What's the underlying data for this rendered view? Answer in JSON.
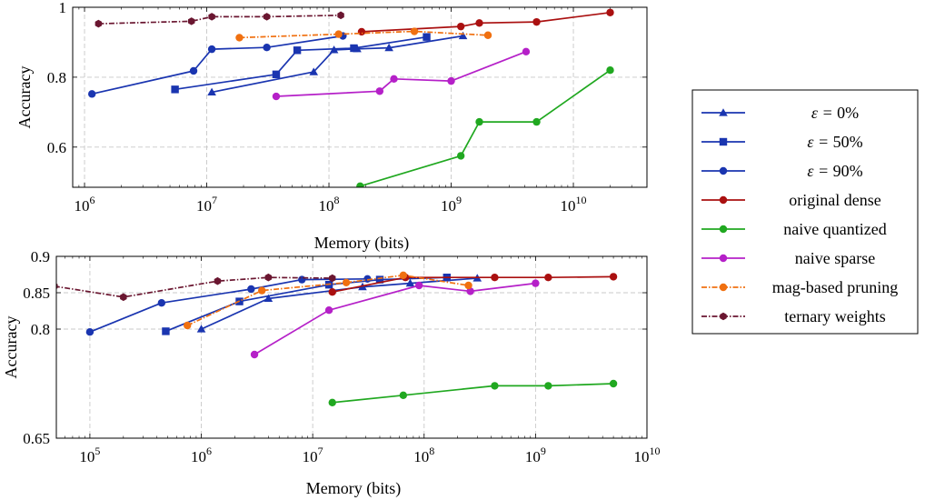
{
  "chart_data": [
    {
      "type": "line",
      "xscale": "log",
      "xlim": [
        800000,
        40000000000
      ],
      "ylim": [
        0.485,
        1.0
      ],
      "xlabel": "Memory (bits)",
      "ylabel": "Accuracy",
      "xticks": [
        {
          "value": 1000000,
          "base": "10",
          "exp": "6"
        },
        {
          "value": 10000000,
          "base": "10",
          "exp": "7"
        },
        {
          "value": 100000000,
          "base": "10",
          "exp": "8"
        },
        {
          "value": 1000000000,
          "base": "10",
          "exp": "9"
        },
        {
          "value": 10000000000,
          "base": "10",
          "exp": "10"
        }
      ],
      "yticks": [
        {
          "value": 0.6,
          "label": "0.6"
        },
        {
          "value": 0.8,
          "label": "0.8"
        },
        {
          "value": 1.0,
          "label": "1"
        }
      ],
      "grid": true,
      "series": [
        {
          "key": "eps0",
          "color": "#1a35b0",
          "marker": "triangle",
          "dash": "solid",
          "points": [
            [
              11000000,
              0.757
            ],
            [
              75000000,
              0.815
            ],
            [
              110000000,
              0.878
            ],
            [
              170000000,
              0.881
            ],
            [
              310000000,
              0.884
            ],
            [
              1250000000,
              0.918
            ]
          ]
        },
        {
          "key": "eps50",
          "color": "#1a35b0",
          "marker": "square",
          "dash": "solid",
          "points": [
            [
              5500000,
              0.765
            ],
            [
              37000000,
              0.808
            ],
            [
              55000000,
              0.877
            ],
            [
              160000000,
              0.883
            ],
            [
              630000000,
              0.915
            ]
          ]
        },
        {
          "key": "eps90",
          "color": "#1a35b0",
          "marker": "circle",
          "dash": "solid",
          "points": [
            [
              1150000,
              0.752
            ],
            [
              7800000,
              0.818
            ],
            [
              11000000,
              0.88
            ],
            [
              31000000,
              0.885
            ],
            [
              130000000,
              0.918
            ]
          ]
        },
        {
          "key": "dense",
          "color": "#aa1010",
          "marker": "circle",
          "dash": "solid",
          "points": [
            [
              185000000,
              0.93
            ],
            [
              1200000000,
              0.945
            ],
            [
              1700000000,
              0.955
            ],
            [
              5000000000,
              0.958
            ],
            [
              20000000000,
              0.985
            ]
          ]
        },
        {
          "key": "naive_q",
          "color": "#20a820",
          "marker": "circle",
          "dash": "solid",
          "points": [
            [
              180000000,
              0.488
            ],
            [
              1200000000,
              0.575
            ],
            [
              1700000000,
              0.672
            ],
            [
              5000000000,
              0.672
            ],
            [
              20000000000,
              0.82
            ]
          ]
        },
        {
          "key": "naive_s",
          "color": "#b520c8",
          "marker": "circle",
          "dash": "solid",
          "points": [
            [
              37000000,
              0.745
            ],
            [
              260000000,
              0.76
            ],
            [
              340000000,
              0.795
            ],
            [
              1000000000,
              0.789
            ],
            [
              4100000000,
              0.873
            ]
          ]
        },
        {
          "key": "mag",
          "color": "#f07010",
          "marker": "circle",
          "dash": "dashdot",
          "points": [
            [
              18500000,
              0.913
            ],
            [
              120000000,
              0.923
            ],
            [
              500000000,
              0.931
            ],
            [
              2000000000,
              0.92
            ]
          ]
        },
        {
          "key": "ternary",
          "color": "#6a1630",
          "marker": "hexagon",
          "dash": "dashdot",
          "points": [
            [
              1300000,
              0.953
            ],
            [
              7500000,
              0.96
            ],
            [
              11000000,
              0.973
            ],
            [
              31000000,
              0.973
            ],
            [
              125000000,
              0.977
            ]
          ]
        }
      ]
    },
    {
      "type": "line",
      "xscale": "log",
      "xlim": [
        50000,
        10000000000
      ],
      "ylim": [
        0.65,
        0.9
      ],
      "xlabel": "Memory (bits)",
      "ylabel": "Accuracy",
      "xticks": [
        {
          "value": 100000,
          "base": "10",
          "exp": "5"
        },
        {
          "value": 1000000,
          "base": "10",
          "exp": "6"
        },
        {
          "value": 10000000,
          "base": "10",
          "exp": "7"
        },
        {
          "value": 100000000,
          "base": "10",
          "exp": "8"
        },
        {
          "value": 1000000000,
          "base": "10",
          "exp": "9"
        },
        {
          "value": 10000000000,
          "base": "10",
          "exp": "10"
        }
      ],
      "yticks": [
        {
          "value": 0.65,
          "label": "0.65"
        },
        {
          "value": 0.8,
          "label": "0.8"
        },
        {
          "value": 0.85,
          "label": "0.85"
        },
        {
          "value": 0.9,
          "label": "0.9"
        }
      ],
      "grid": true,
      "series": [
        {
          "key": "eps0",
          "color": "#1a35b0",
          "marker": "triangle",
          "dash": "solid",
          "points": [
            [
              1000000,
              0.8
            ],
            [
              4000000,
              0.842
            ],
            [
              28000000,
              0.858
            ],
            [
              75000000,
              0.863
            ],
            [
              300000000,
              0.87
            ]
          ]
        },
        {
          "key": "eps50",
          "color": "#1a35b0",
          "marker": "square",
          "dash": "solid",
          "points": [
            [
              480000,
              0.797
            ],
            [
              2200000,
              0.838
            ],
            [
              14000000,
              0.861
            ],
            [
              40000000,
              0.868
            ],
            [
              160000000,
              0.871
            ]
          ]
        },
        {
          "key": "eps90",
          "color": "#1a35b0",
          "marker": "circle",
          "dash": "solid",
          "points": [
            [
              100000,
              0.796
            ],
            [
              440000,
              0.836
            ],
            [
              2800000,
              0.855
            ],
            [
              8000000,
              0.868
            ],
            [
              31000000,
              0.869
            ]
          ]
        },
        {
          "key": "dense",
          "color": "#aa1010",
          "marker": "circle",
          "dash": "solid",
          "points": [
            [
              15000000,
              0.851
            ],
            [
              68000000,
              0.871
            ],
            [
              430000000,
              0.871
            ],
            [
              1300000000,
              0.871
            ],
            [
              5000000000,
              0.872
            ]
          ]
        },
        {
          "key": "naive_q",
          "color": "#20a820",
          "marker": "circle",
          "dash": "solid",
          "points": [
            [
              15000000,
              0.699
            ],
            [
              65000000,
              0.709
            ],
            [
              430000000,
              0.722
            ],
            [
              1300000000,
              0.722
            ],
            [
              5000000000,
              0.725
            ]
          ]
        },
        {
          "key": "naive_s",
          "color": "#b520c8",
          "marker": "circle",
          "dash": "solid",
          "points": [
            [
              3000000,
              0.765
            ],
            [
              14000000,
              0.826
            ],
            [
              90000000,
              0.86
            ],
            [
              260000000,
              0.852
            ],
            [
              1000000000,
              0.863
            ]
          ]
        },
        {
          "key": "mag",
          "color": "#f07010",
          "marker": "circle",
          "dash": "dashdot",
          "points": [
            [
              750000,
              0.805
            ],
            [
              3500000,
              0.853
            ],
            [
              20000000,
              0.864
            ],
            [
              65000000,
              0.874
            ],
            [
              250000000,
              0.86
            ]
          ]
        },
        {
          "key": "ternary",
          "color": "#6a1630",
          "marker": "hexagon",
          "dash": "dashdot",
          "points": [
            [
              48000,
              0.859
            ],
            [
              200000,
              0.844
            ],
            [
              1400000,
              0.866
            ],
            [
              4000000,
              0.871
            ],
            [
              15000000,
              0.87
            ]
          ]
        }
      ]
    }
  ],
  "legend": {
    "placement": "right",
    "entries": [
      {
        "key": "eps0",
        "type": "math",
        "prefix": "ε = ",
        "value": "0%"
      },
      {
        "key": "eps50",
        "type": "math",
        "prefix": "ε = ",
        "value": "50%"
      },
      {
        "key": "eps90",
        "type": "math",
        "prefix": "ε = ",
        "value": "90%"
      },
      {
        "key": "dense",
        "type": "text",
        "label": "original dense"
      },
      {
        "key": "naive_q",
        "type": "text",
        "label": "naive quantized"
      },
      {
        "key": "naive_s",
        "type": "text",
        "label": "naive sparse"
      },
      {
        "key": "mag",
        "type": "text",
        "label": "mag-based pruning"
      },
      {
        "key": "ternary",
        "type": "text",
        "label": "ternary weights"
      }
    ]
  }
}
